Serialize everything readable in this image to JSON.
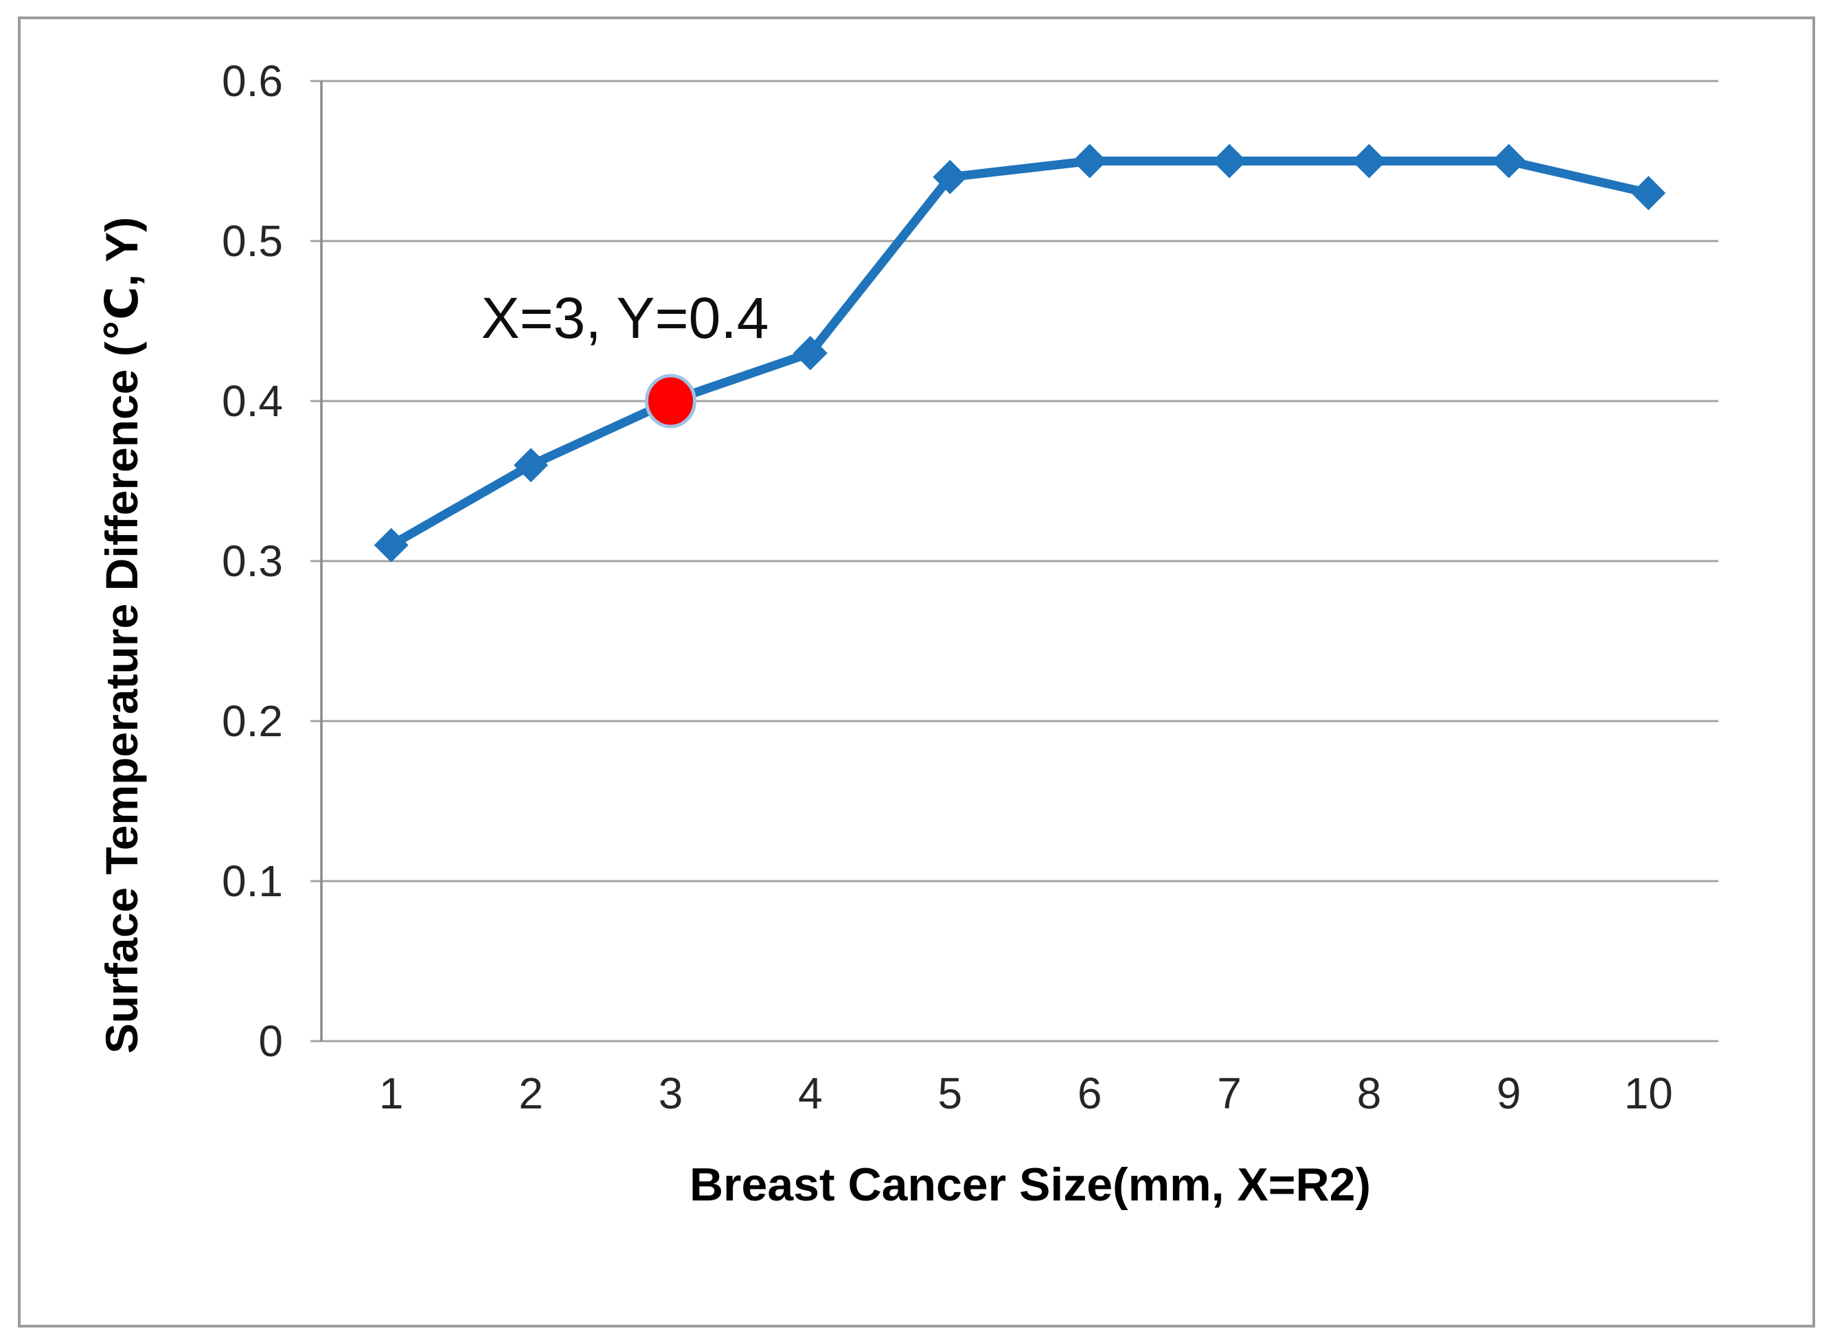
{
  "chart_data": {
    "type": "line",
    "title": "",
    "xlabel": "Breast Cancer Size(mm, X=R2)",
    "ylabel": "Surface Temperature Difference (℃, Y)",
    "x": [
      1,
      2,
      3,
      4,
      5,
      6,
      7,
      8,
      9,
      10
    ],
    "xticks": [
      "1",
      "2",
      "3",
      "4",
      "5",
      "6",
      "7",
      "8",
      "9",
      "10"
    ],
    "yticks": [
      "0",
      "0.1",
      "0.2",
      "0.3",
      "0.4",
      "0.5",
      "0.6"
    ],
    "ylim": [
      0,
      0.6
    ],
    "grid": "horizontal",
    "legend": "none",
    "series": [
      {
        "name": "Surface Temperature Difference",
        "values": [
          0.31,
          0.36,
          0.4,
          0.43,
          0.54,
          0.55,
          0.55,
          0.55,
          0.55,
          0.53
        ],
        "marker": "diamond",
        "color": "#1f74bc"
      }
    ],
    "annotation": {
      "text": "X=3, Y=0.4",
      "x": 3,
      "y": 0.4,
      "point_color": "#fe0000",
      "point_halo_color": "#9dc3e6"
    },
    "colors": {
      "line": "#1f74bc",
      "highlight": "#fe0000",
      "highlight_halo": "#9dc3e6",
      "gridline": "#a3a3a3",
      "axis_line": "#8c8c8c",
      "tick_text": "#262626",
      "title_text": "#000000",
      "frame_border": "#9b9b9b",
      "background": "#ffffff"
    }
  }
}
